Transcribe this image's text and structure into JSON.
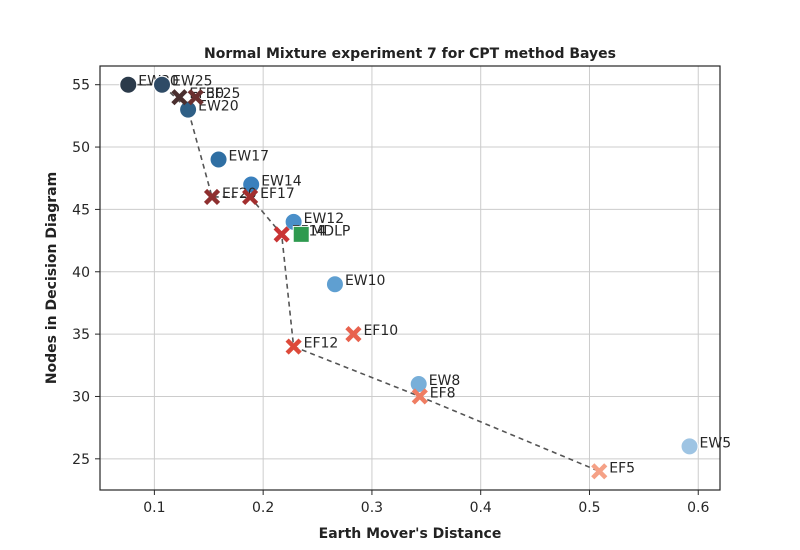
{
  "chart_data": {
    "type": "scatter",
    "title": "Normal Mixture experiment 7 for CPT method Bayes",
    "xlabel": "Earth Mover's Distance",
    "ylabel": "Nodes in Decision Diagram",
    "xlim": [
      0.05,
      0.62
    ],
    "ylim": [
      22.5,
      56.5
    ],
    "xticks": [
      0.1,
      0.2,
      0.3,
      0.4,
      0.5,
      0.6
    ],
    "xtick_labels": [
      "0.1",
      "0.2",
      "0.3",
      "0.4",
      "0.5",
      "0.6"
    ],
    "yticks": [
      25,
      30,
      35,
      40,
      45,
      50,
      55
    ],
    "ytick_labels": [
      "25",
      "30",
      "35",
      "40",
      "45",
      "50",
      "55"
    ],
    "grid": true,
    "series": [
      {
        "marker": "circle",
        "points": [
          {
            "label": "EW30",
            "x": 0.076,
            "y": 55,
            "color": "#2b3a4a"
          },
          {
            "label": "EW25",
            "x": 0.107,
            "y": 55,
            "color": "#2f4b66"
          },
          {
            "label": "EW20",
            "x": 0.131,
            "y": 53,
            "color": "#2f5f86"
          },
          {
            "label": "EW17",
            "x": 0.159,
            "y": 49,
            "color": "#2f6fa3"
          },
          {
            "label": "EW14",
            "x": 0.189,
            "y": 47,
            "color": "#3a80bd"
          },
          {
            "label": "EW12",
            "x": 0.228,
            "y": 44,
            "color": "#4a8fc9"
          },
          {
            "label": "EW10",
            "x": 0.266,
            "y": 39,
            "color": "#5f9fd1"
          },
          {
            "label": "EW8",
            "x": 0.343,
            "y": 31,
            "color": "#78afd9"
          },
          {
            "label": "EW5",
            "x": 0.592,
            "y": 26,
            "color": "#9ec4e3"
          }
        ]
      },
      {
        "marker": "x",
        "points": [
          {
            "label": "EF30",
            "x": 0.123,
            "y": 54,
            "color": "#4a2f2f"
          },
          {
            "label": "EF25",
            "x": 0.138,
            "y": 54,
            "color": "#6b3030"
          },
          {
            "label": "EF20",
            "x": 0.153,
            "y": 46,
            "color": "#8e2f2f"
          },
          {
            "label": "EF17",
            "x": 0.188,
            "y": 46,
            "color": "#a32f2f"
          },
          {
            "label": "EF14",
            "x": 0.217,
            "y": 43,
            "color": "#c93434"
          },
          {
            "label": "EF12",
            "x": 0.228,
            "y": 34,
            "color": "#dd4a3a"
          },
          {
            "label": "EF10",
            "x": 0.283,
            "y": 35,
            "color": "#e8624e"
          },
          {
            "label": "EF8",
            "x": 0.344,
            "y": 30,
            "color": "#ef7d62"
          },
          {
            "label": "EF5",
            "x": 0.509,
            "y": 24,
            "color": "#f5a186"
          }
        ]
      },
      {
        "marker": "square",
        "points": [
          {
            "label": "MDLP",
            "x": 0.235,
            "y": 43,
            "color": "#2e9a4f"
          }
        ]
      }
    ],
    "pareto_frontier": [
      [
        0.076,
        55
      ],
      [
        0.107,
        55
      ],
      [
        0.131,
        53
      ],
      [
        0.153,
        46
      ],
      [
        0.188,
        46
      ],
      [
        0.217,
        43
      ],
      [
        0.228,
        34
      ],
      [
        0.344,
        30
      ],
      [
        0.509,
        24
      ]
    ]
  }
}
